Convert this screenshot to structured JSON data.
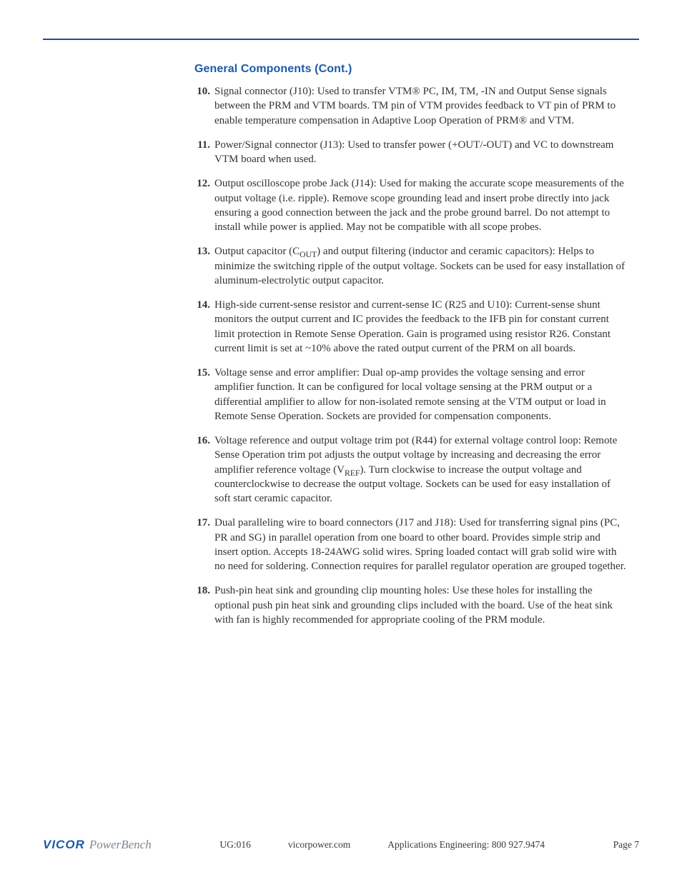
{
  "colors": {
    "rule": "#1a4f9c",
    "heading": "#1a5aa8",
    "body_text": "#333333",
    "footer_text": "#3a3a3a",
    "logo_blue": "#1a5aa8",
    "logo_grey": "#7c8690",
    "background": "#ffffff"
  },
  "typography": {
    "body_family": "Times New Roman serif",
    "body_size_pt": 11,
    "heading_family": "Segoe UI sans-serif",
    "heading_size_pt": 12,
    "heading_weight": "bold"
  },
  "section": {
    "title": "General Components (Cont.)",
    "start_number": 10,
    "items": [
      {
        "num": "10.",
        "html": "Signal connector (J10): Used to transfer VTM® PC, IM, TM, -IN and Output Sense signals between the PRM and VTM boards. TM pin of VTM provides feedback to VT pin of PRM to enable temperature compensation in Adaptive Loop Operation of PRM® and VTM."
      },
      {
        "num": "11.",
        "html": "Power/Signal connector (J13): Used to transfer power (+OUT/-OUT) and VC to downstream VTM board when used."
      },
      {
        "num": "12.",
        "html": "Output oscilloscope probe Jack (J14): Used for making the accurate scope measurements of the output voltage (i.e. ripple). Remove scope grounding lead and insert probe directly into jack ensuring a good connection between the jack and the probe ground barrel. Do not attempt to install while power is applied. May not be compatible with all scope probes."
      },
      {
        "num": "13.",
        "html": "Output capacitor (C<span class=\"sub\">OUT</span>) and output filtering (inductor and ceramic capacitors): Helps to minimize the switching ripple of the output voltage. Sockets can be used for easy installation of aluminum-electrolytic output capacitor."
      },
      {
        "num": "14.",
        "html": "High-side current-sense resistor and current-sense IC (R25 and U10): Current-sense shunt monitors the output current and IC provides the feedback to the IFB pin for constant current limit protection in Remote Sense Operation. Gain is programed using resistor R26. Constant current limit is set at ~10% above the rated output current of the PRM on all boards."
      },
      {
        "num": "15.",
        "html": "Voltage sense and error amplifier: Dual op-amp provides the voltage sensing and error amplifier function. It can be configured for local voltage sensing at the PRM output or a differential amplifier to allow for non-isolated remote sensing at the VTM output or load in Remote Sense Operation. Sockets are provided for&nbsp;compensation components."
      },
      {
        "num": "16.",
        "html": "Voltage reference and output voltage trim pot (R44) for external voltage control loop: Remote Sense Operation trim pot adjusts the output voltage by increasing and decreasing the error amplifier reference voltage (V<span class=\"sub\">REF</span>). Turn clockwise to increase the output voltage and counterclockwise to decrease the output voltage. Sockets can be used for easy installation of soft start ceramic capacitor."
      },
      {
        "num": "17.",
        "html": "Dual paralleling wire to board connectors (J17 and J18): Used for transferring signal pins (PC, PR and SG) in parallel operation from one board to other board. Provides simple strip and insert option. Accepts 18-24AWG solid wires. Spring loaded contact will grab solid wire with no need for soldering. Connection requires for parallel regulator operation are grouped together."
      },
      {
        "num": "18.",
        "html": "Push-pin heat sink and grounding clip mounting holes: Use these holes for installing the optional push pin heat sink and grounding clips included with the board. Use of the heat sink with fan is highly recommended for appropriate cooling of the PRM module."
      }
    ]
  },
  "footer": {
    "logo_vicor": "VICOR",
    "logo_powerbench": "PowerBench",
    "doc_id": "UG:016",
    "url": "vicorpower.com",
    "contact": "Applications Engineering: 800 927.9474",
    "page_label": "Page 7"
  }
}
